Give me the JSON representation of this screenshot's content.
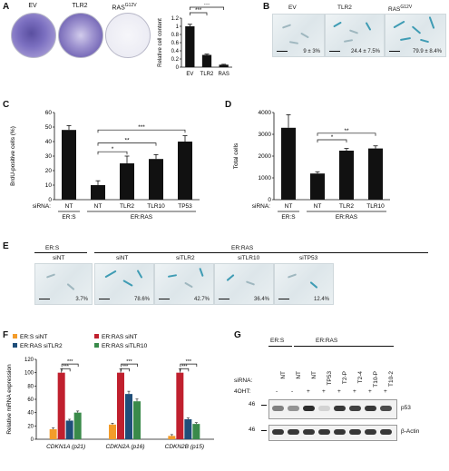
{
  "panels": {
    "A": {
      "letter": "A",
      "plates": [
        "EV",
        "TLR2",
        "RAS"
      ],
      "plate_superscript": "G12V",
      "chart_data": {
        "type": "bar",
        "categories": [
          "EV",
          "TLR2",
          "RAS"
        ],
        "values": [
          1.0,
          0.3,
          0.06
        ],
        "errors": [
          0.05,
          0.02,
          0.01
        ],
        "ylabel": "Relative cell content",
        "ylim": [
          0,
          1.2
        ],
        "yticks": [
          "0",
          "0.2",
          "0.4",
          "0.6",
          "0.8",
          "1",
          "1.2"
        ],
        "sig": [
          "***",
          "***"
        ],
        "bar_color": "#111111"
      }
    },
    "B": {
      "letter": "B",
      "labels": [
        "EV",
        "TLR2",
        "RAS"
      ],
      "label_superscript": "G12V",
      "values": [
        "9 ± 3%",
        "24.4 ± 7.5%",
        "79.9 ± 8.4%"
      ]
    },
    "C": {
      "letter": "C",
      "chart_data": {
        "type": "bar",
        "categories": [
          "NT",
          "NT",
          "TLR2",
          "TLR10",
          "TP53"
        ],
        "values": [
          48,
          10,
          25,
          28,
          40
        ],
        "errors": [
          3,
          3,
          5,
          3,
          4
        ],
        "ylabel": "BrdU-positive cells (%)",
        "ylim": [
          0,
          60
        ],
        "yticks": [
          "0",
          "10",
          "20",
          "30",
          "40",
          "50",
          "60"
        ],
        "sirna_label": "siRNA:",
        "groups": [
          "ER:S",
          "ER:RAS"
        ],
        "sig": [
          "*",
          "**",
          "***"
        ]
      }
    },
    "D": {
      "letter": "D",
      "chart_data": {
        "type": "bar",
        "categories": [
          "NT",
          "NT",
          "TLR2",
          "TLR10"
        ],
        "values": [
          3300,
          1200,
          2250,
          2350
        ],
        "errors": [
          600,
          80,
          100,
          120
        ],
        "ylabel": "Total cells",
        "ylim": [
          0,
          4000
        ],
        "yticks": [
          "0",
          "1000",
          "2000",
          "3000",
          "4000"
        ],
        "sirna_label": "siRNA:",
        "groups": [
          "ER:S",
          "ER:RAS"
        ],
        "sig": [
          "*",
          "**"
        ]
      }
    },
    "E": {
      "letter": "E",
      "groups": [
        "ER:S",
        "ER:RAS"
      ],
      "labels": [
        "siNT",
        "siNT",
        "siTLR2",
        "siTLR10",
        "siTP53"
      ],
      "values": [
        "3.7%",
        "78.6%",
        "42.7%",
        "36.4%",
        "12.4%"
      ]
    },
    "F": {
      "letter": "F",
      "chart_data": {
        "type": "bar",
        "categories": [
          "CDKN1A (p21)",
          "CDKN2A (p16)",
          "CDKN2B (p15)"
        ],
        "series": [
          {
            "name": "ER:S siNT",
            "values": [
              15,
              22,
              5
            ],
            "color": "#f39c2a"
          },
          {
            "name": "ER:RAS siNT",
            "values": [
              100,
              100,
              100
            ],
            "color": "#c0202e"
          },
          {
            "name": "ER:RAS siTLR2",
            "values": [
              28,
              68,
              30
            ],
            "color": "#1f4e79"
          },
          {
            "name": "ER:RAS siTLR10",
            "values": [
              40,
              57,
              23
            ],
            "color": "#3a8a4a"
          }
        ],
        "ylabel": "Relative mRNA expression",
        "ylim": [
          0,
          120
        ],
        "yticks": [
          "0",
          "20",
          "40",
          "60",
          "80",
          "100",
          "120"
        ],
        "sig": [
          "***",
          "***",
          "***"
        ]
      }
    },
    "G": {
      "letter": "G",
      "groups": [
        "ER:S",
        "ER:RAS"
      ],
      "sirna_label": "siRNA:",
      "ohtlabel": "4OHT:",
      "lanes": [
        "NT",
        "NT",
        "NT",
        "TP53",
        "T2-P",
        "T2-4",
        "T10-P",
        "T10-2"
      ],
      "oht": [
        "-",
        "-",
        "+",
        "+",
        "+",
        "+",
        "+",
        "+"
      ],
      "markers": [
        "46",
        "46"
      ],
      "proteins": [
        "p53",
        "β-Actin"
      ]
    }
  }
}
